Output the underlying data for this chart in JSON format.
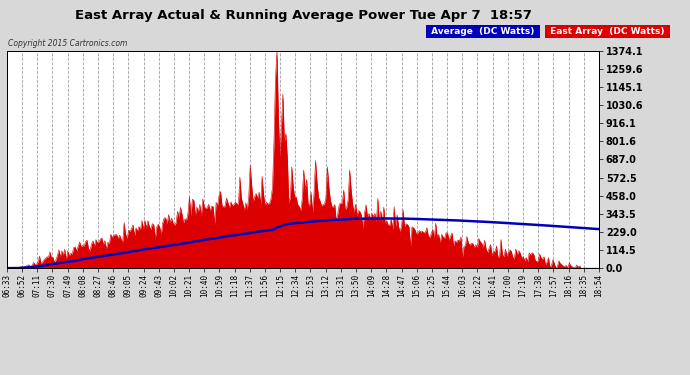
{
  "title": "East Array Actual & Running Average Power Tue Apr 7  18:57",
  "copyright": "Copyright 2015 Cartronics.com",
  "ylabel_right_ticks": [
    0.0,
    114.5,
    229.0,
    343.5,
    458.0,
    572.5,
    687.0,
    801.6,
    916.1,
    1030.6,
    1145.1,
    1259.6,
    1374.1
  ],
  "ylim": [
    0,
    1374.1
  ],
  "background_color": "#d8d8d8",
  "plot_bg_color": "#ffffff",
  "grid_color": "#888888",
  "title_color": "#000000",
  "east_array_color": "#dd0000",
  "avg_line_color": "#0000bb",
  "legend_avg_bg": "#0000bb",
  "legend_east_bg": "#dd0000",
  "xtick_labels": [
    "06:33",
    "06:52",
    "07:11",
    "07:30",
    "07:49",
    "08:08",
    "08:27",
    "08:46",
    "09:05",
    "09:24",
    "09:43",
    "10:02",
    "10:21",
    "10:40",
    "10:59",
    "11:18",
    "11:37",
    "11:56",
    "12:15",
    "12:34",
    "12:53",
    "13:12",
    "13:31",
    "13:50",
    "14:09",
    "14:28",
    "14:47",
    "15:06",
    "15:25",
    "15:44",
    "16:03",
    "16:22",
    "16:41",
    "17:00",
    "17:19",
    "17:38",
    "17:57",
    "18:16",
    "18:35",
    "18:54"
  ],
  "n_points": 400
}
